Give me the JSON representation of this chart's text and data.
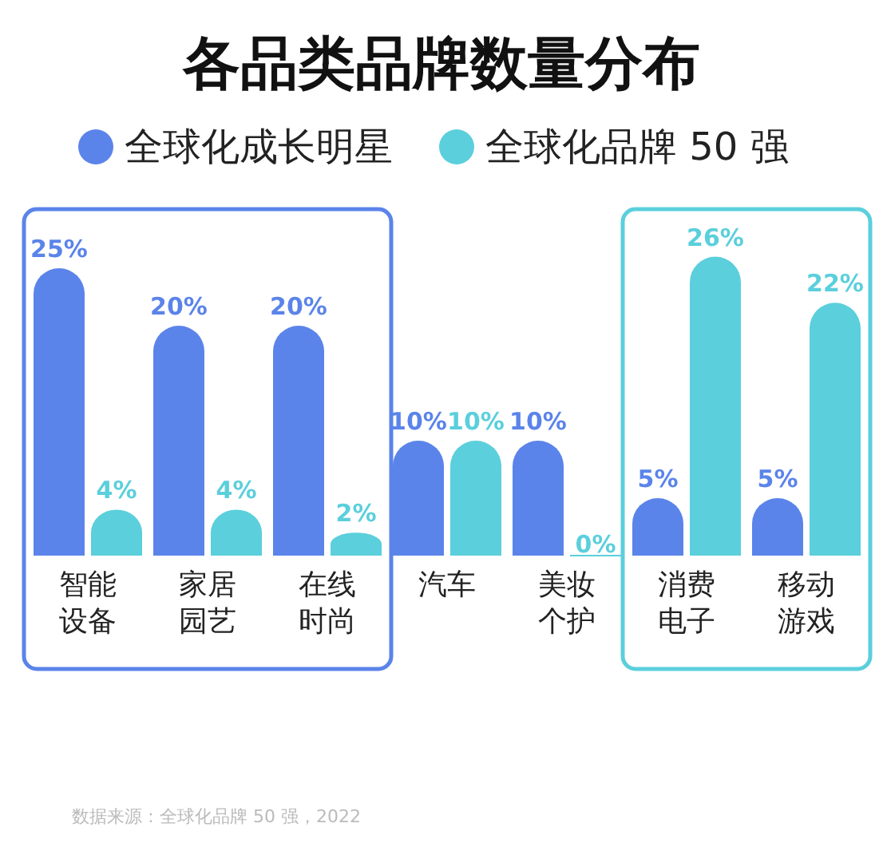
{
  "chart_data": {
    "type": "bar",
    "title": "各品类品牌数量分布",
    "categories": [
      "智能设备",
      "家居园艺",
      "在线时尚",
      "汽车",
      "美妆个护",
      "消费电子",
      "移动游戏"
    ],
    "series": [
      {
        "name": "全球化成长明星",
        "color": "#5b84ea",
        "values": [
          25,
          20,
          20,
          10,
          10,
          5,
          5
        ],
        "value_labels": [
          "25%",
          "20%",
          "20%",
          "10%",
          "10%",
          "5%",
          "5%"
        ]
      },
      {
        "name": "全球化品牌 50 强",
        "color": "#5bcfdc",
        "values": [
          4,
          4,
          2,
          10,
          0,
          26,
          22
        ],
        "value_labels": [
          "4%",
          "4%",
          "2%",
          "10%",
          "0%",
          "26%",
          "22%"
        ]
      }
    ],
    "legend": "top",
    "annotations": [
      "数据来源：全球化品牌 50 强，2022"
    ]
  }
}
